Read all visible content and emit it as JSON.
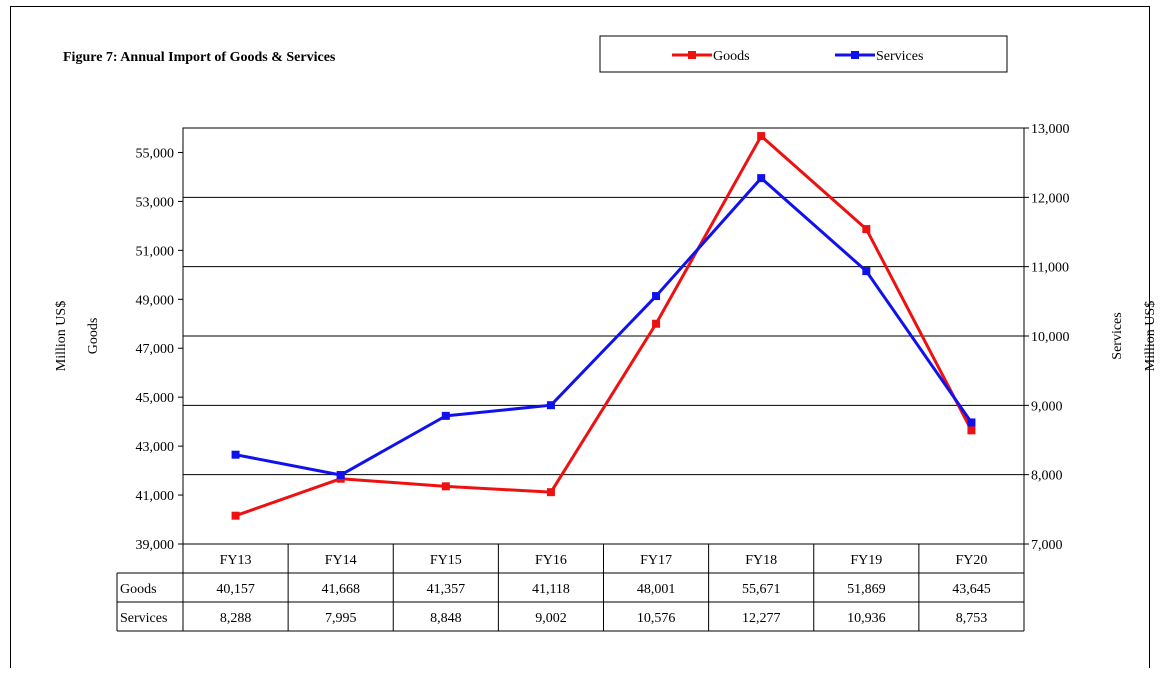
{
  "chart_data": {
    "type": "line",
    "title": "Figure 7: Annual Import of Goods & Services",
    "categories": [
      "FY13",
      "FY14",
      "FY15",
      "FY16",
      "FY17",
      "FY18",
      "FY19",
      "FY20"
    ],
    "series": [
      {
        "name": "Goods",
        "axis": "left",
        "color": "#ee1111",
        "values": [
          40157,
          41668,
          41357,
          41118,
          48001,
          55671,
          51869,
          43645
        ]
      },
      {
        "name": "Services",
        "axis": "right",
        "color": "#1111ee",
        "values": [
          8288,
          7995,
          8848,
          9002,
          10576,
          12277,
          10936,
          8753
        ]
      }
    ],
    "left_axis": {
      "label_line1": "Million US$",
      "label_line2": "Goods",
      "range": [
        39000,
        56000
      ],
      "ticks": [
        39000,
        41000,
        43000,
        45000,
        47000,
        49000,
        51000,
        53000,
        55000
      ],
      "tick_labels": [
        "39,000",
        "41,000",
        "43,000",
        "45,000",
        "47,000",
        "49,000",
        "51,000",
        "53,000",
        "55,000"
      ]
    },
    "right_axis": {
      "label_line1": "Services",
      "label_line2": "Million US$",
      "range": [
        7000,
        13000
      ],
      "ticks": [
        7000,
        8000,
        9000,
        10000,
        11000,
        12000,
        13000
      ],
      "tick_labels": [
        "7,000",
        "8,000",
        "9,000",
        "10,000",
        "11,000",
        "12,000",
        "13,000"
      ]
    },
    "gridlines": "horizontal",
    "legend": {
      "position": "top-right",
      "entries": [
        "Goods",
        "Services"
      ]
    },
    "data_table": {
      "rows": [
        {
          "label": "Goods",
          "cells": [
            "40,157",
            "41,668",
            "41,357",
            "41,118",
            "48,001",
            "55,671",
            "51,869",
            "43,645"
          ]
        },
        {
          "label": "Services",
          "cells": [
            "8,288",
            "7,995",
            "8,848",
            "9,002",
            "10,576",
            "12,277",
            "10,936",
            "8,753"
          ]
        }
      ]
    }
  }
}
